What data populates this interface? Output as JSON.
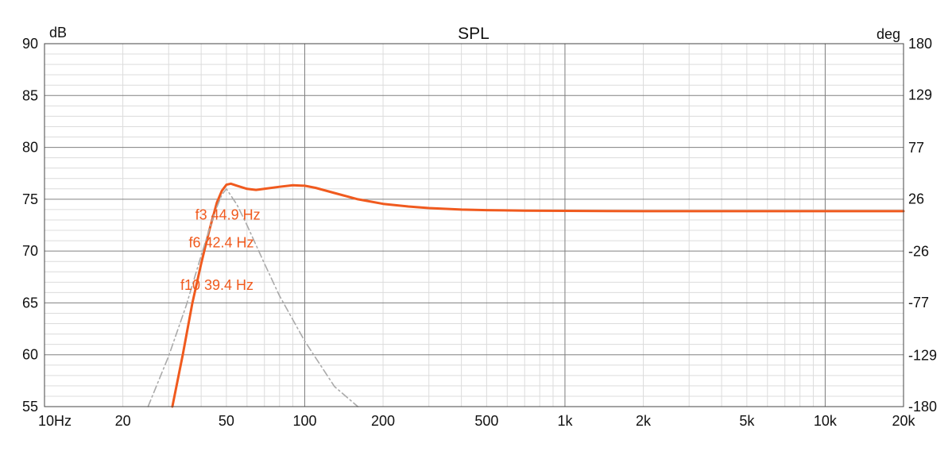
{
  "chart_data": {
    "type": "line",
    "title": "SPL",
    "ylabel": "dB",
    "y2label": "deg",
    "xscale": "log",
    "xlim": [
      10,
      20000
    ],
    "ylim": [
      55,
      90
    ],
    "y2lim": [
      -180,
      180
    ],
    "grid": true,
    "x_ticks": [
      10,
      20,
      50,
      100,
      200,
      500,
      1000,
      2000,
      5000,
      10000,
      20000
    ],
    "x_tick_labels": [
      "10Hz",
      "20",
      "50",
      "100",
      "200",
      "500",
      "1k",
      "2k",
      "5k",
      "10k",
      "20k"
    ],
    "y_ticks": [
      90,
      85,
      80,
      75,
      70,
      65,
      60,
      55
    ],
    "y_tick_labels": [
      "90",
      "85",
      "80",
      "75",
      "70",
      "65",
      "60",
      "55"
    ],
    "y2_ticks": [
      180,
      129,
      77,
      26,
      -26,
      -77,
      -129,
      -180
    ],
    "y2_tick_labels": [
      "180",
      "129",
      "77",
      "26",
      "-26",
      "-77",
      "-129",
      "-180"
    ],
    "series": [
      {
        "axis": "left",
        "color": "#f05a1e",
        "style": "solid",
        "x": [
          31,
          34,
          37,
          40,
          43,
          46,
          48,
          50,
          52,
          55,
          60,
          65,
          70,
          80,
          90,
          100,
          110,
          130,
          160,
          200,
          250,
          300,
          400,
          500,
          700,
          1000,
          2000,
          5000,
          10000,
          20000
        ],
        "y": [
          55.0,
          60.0,
          65.0,
          68.8,
          72.0,
          74.7,
          75.8,
          76.4,
          76.5,
          76.3,
          76.0,
          75.9,
          76.0,
          76.2,
          76.35,
          76.3,
          76.1,
          75.6,
          75.0,
          74.55,
          74.3,
          74.15,
          74.0,
          73.95,
          73.9,
          73.88,
          73.85,
          73.85,
          73.85,
          73.85
        ]
      },
      {
        "axis": "right",
        "color": "#aaaaaa",
        "style": "dashdot",
        "x": [
          25,
          30,
          35,
          40,
          45,
          48,
          50,
          55,
          60,
          70,
          80,
          100,
          130,
          160
        ],
        "y": [
          -180,
          -130,
          -80,
          -30,
          12,
          30,
          36,
          20,
          0,
          -38,
          -70,
          -115,
          -160,
          -180
        ]
      }
    ],
    "annotations": [
      {
        "text": "f3 44.9 Hz",
        "x": 44.9,
        "y": 73.5,
        "color": "#f05a1e"
      },
      {
        "text": "f6 42.4 Hz",
        "x": 42.4,
        "y": 70.8,
        "color": "#f05a1e"
      },
      {
        "text": "f10 39.4 Hz",
        "x": 39.4,
        "y": 66.7,
        "color": "#f05a1e"
      }
    ]
  }
}
